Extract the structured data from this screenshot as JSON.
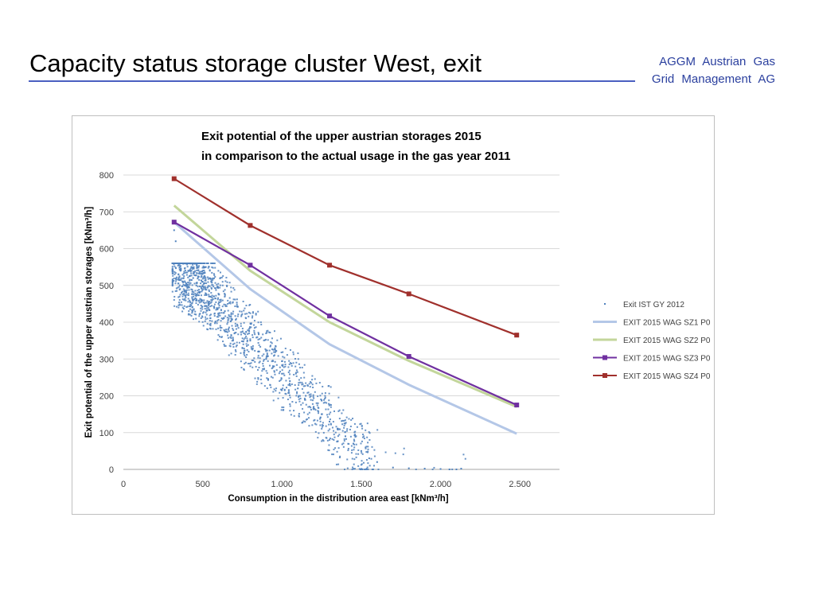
{
  "slide": {
    "title": "Capacity status storage cluster West, exit",
    "company_line1": "AGGM   Austrian   Gas",
    "company_line2": "Grid Management  AG"
  },
  "chart_data": {
    "type": "scatter",
    "title_line1": "Exit potential of the upper austrian storages 2015",
    "title_line2": "in comparison to the actual usage in the gas year 2011",
    "xlabel": "Consumption in the distribution area east [kNm³/h]",
    "ylabel": "Exit potential of the upper austrian storages [kNm³/h]",
    "xlim": [
      0,
      2750
    ],
    "ylim": [
      0,
      800
    ],
    "xticks": [
      0,
      500,
      1000,
      1500,
      2000,
      2500
    ],
    "xtick_labels": [
      "0",
      "500",
      "1.000",
      "1.500",
      "2.000",
      "2.500"
    ],
    "yticks": [
      0,
      100,
      200,
      300,
      400,
      500,
      600,
      700,
      800
    ],
    "ytick_labels": [
      "0",
      "100",
      "200",
      "300",
      "400",
      "500",
      "600",
      "700",
      "800"
    ],
    "grid": true,
    "legend_position": "right",
    "series": [
      {
        "name": "Exit IST GY 2012",
        "kind": "scatter",
        "color": "#4f81bd",
        "points": [
          [
            320,
            650
          ],
          [
            330,
            620
          ],
          [
            350,
            560
          ],
          [
            360,
            540
          ],
          [
            380,
            520
          ],
          [
            400,
            500
          ],
          [
            420,
            540
          ],
          [
            440,
            520
          ],
          [
            460,
            500
          ],
          [
            480,
            480
          ],
          [
            500,
            510
          ],
          [
            520,
            550
          ],
          [
            540,
            470
          ],
          [
            560,
            460
          ],
          [
            600,
            450
          ],
          [
            640,
            430
          ],
          [
            680,
            410
          ],
          [
            720,
            390
          ],
          [
            760,
            370
          ],
          [
            800,
            350
          ],
          [
            850,
            320
          ],
          [
            900,
            300
          ],
          [
            950,
            280
          ],
          [
            1000,
            260
          ],
          [
            1050,
            240
          ],
          [
            1100,
            220
          ],
          [
            1150,
            200
          ],
          [
            1200,
            170
          ],
          [
            1250,
            150
          ],
          [
            1300,
            130
          ],
          [
            1350,
            110
          ],
          [
            1400,
            90
          ],
          [
            1450,
            70
          ],
          [
            1500,
            50
          ],
          [
            1550,
            30
          ],
          [
            1600,
            20
          ],
          [
            1700,
            5
          ],
          [
            1800,
            3
          ],
          [
            1900,
            2
          ],
          [
            2000,
            1
          ],
          [
            2100,
            0
          ],
          [
            2130,
            2
          ]
        ]
      },
      {
        "name": "EXIT 2015 WAG SZ1 P0",
        "kind": "line",
        "color": "#b4c7e7",
        "x": [
          320,
          800,
          1300,
          1800,
          2480
        ],
        "y": [
          672,
          490,
          340,
          230,
          97
        ]
      },
      {
        "name": "EXIT 2015 WAG SZ2 P0",
        "kind": "line",
        "color": "#c3d69b",
        "x": [
          320,
          800,
          1300,
          1800,
          2480
        ],
        "y": [
          717,
          540,
          400,
          295,
          170
        ]
      },
      {
        "name": "EXIT 2015 WAG SZ3 P0",
        "kind": "line-marker",
        "color": "#7030a0",
        "x": [
          320,
          800,
          1300,
          1800,
          2480
        ],
        "y": [
          672,
          555,
          417,
          307,
          175
        ]
      },
      {
        "name": "EXIT 2015 WAG SZ4 P0",
        "kind": "line-marker",
        "color": "#a0302c",
        "x": [
          320,
          800,
          1300,
          1800,
          2480
        ],
        "y": [
          790,
          663,
          555,
          477,
          365
        ]
      }
    ]
  }
}
